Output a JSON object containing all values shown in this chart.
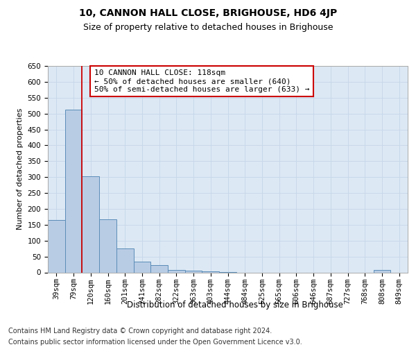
{
  "title": "10, CANNON HALL CLOSE, BRIGHOUSE, HD6 4JP",
  "subtitle": "Size of property relative to detached houses in Brighouse",
  "xlabel": "Distribution of detached houses by size in Brighouse",
  "ylabel": "Number of detached properties",
  "categories": [
    "39sqm",
    "79sqm",
    "120sqm",
    "160sqm",
    "201sqm",
    "241sqm",
    "282sqm",
    "322sqm",
    "363sqm",
    "403sqm",
    "444sqm",
    "484sqm",
    "525sqm",
    "565sqm",
    "606sqm",
    "646sqm",
    "687sqm",
    "727sqm",
    "768sqm",
    "808sqm",
    "849sqm"
  ],
  "values": [
    165,
    513,
    302,
    167,
    76,
    33,
    22,
    7,
    5,
    4,
    1,
    0,
    0,
    0,
    0,
    0,
    0,
    0,
    0,
    7,
    0
  ],
  "bar_color": "#b8cce4",
  "bar_edge_color": "#5b8db8",
  "vline_color": "#cc0000",
  "vline_x_index": 2,
  "annotation_text": "10 CANNON HALL CLOSE: 118sqm\n← 50% of detached houses are smaller (640)\n50% of semi-detached houses are larger (633) →",
  "annotation_box_facecolor": "#ffffff",
  "annotation_box_edgecolor": "#cc0000",
  "ylim": [
    0,
    650
  ],
  "yticks": [
    0,
    50,
    100,
    150,
    200,
    250,
    300,
    350,
    400,
    450,
    500,
    550,
    600,
    650
  ],
  "grid_color": "#c8d8ea",
  "background_color": "#dce8f4",
  "footer_line1": "Contains HM Land Registry data © Crown copyright and database right 2024.",
  "footer_line2": "Contains public sector information licensed under the Open Government Licence v3.0.",
  "title_fontsize": 10,
  "subtitle_fontsize": 9,
  "xlabel_fontsize": 8.5,
  "ylabel_fontsize": 8,
  "tick_fontsize": 7.5,
  "annotation_fontsize": 8,
  "footer_fontsize": 7
}
